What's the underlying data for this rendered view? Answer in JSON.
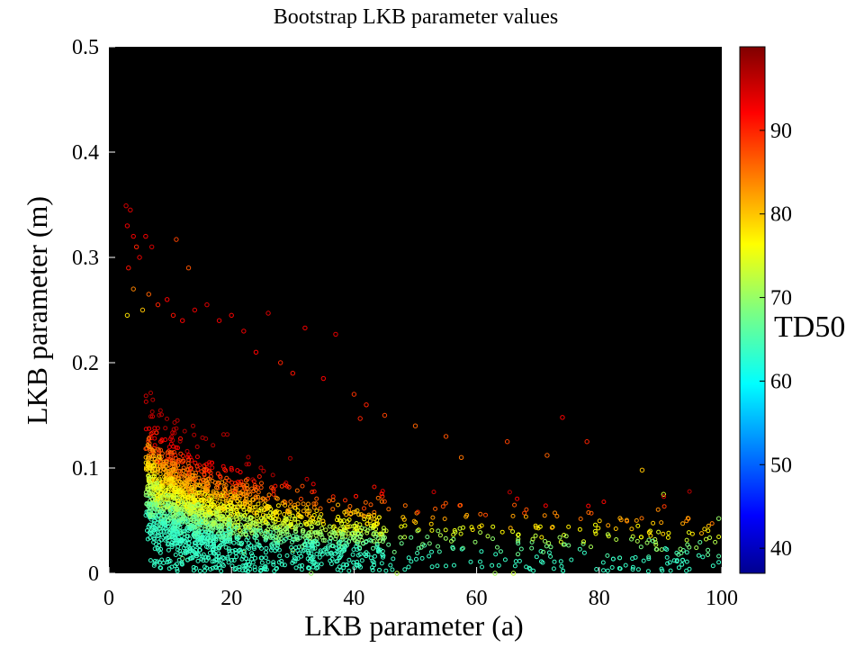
{
  "chart_data": {
    "type": "scatter",
    "title": "Bootstrap LKB parameter values",
    "xlabel": "LKB parameter (a)",
    "ylabel": "LKB parameter (m)",
    "xlim": [
      0,
      100
    ],
    "ylim": [
      0,
      0.5
    ],
    "xticks": [
      "0",
      "20",
      "40",
      "60",
      "80",
      "100"
    ],
    "yticks": [
      "0",
      "0.1",
      "0.2",
      "0.3",
      "0.4",
      "0.5"
    ],
    "plot_background": "#000000",
    "grid": false,
    "color_variable": "TD50",
    "colorbar": {
      "label": "TD50",
      "range": [
        37,
        100
      ],
      "ticks": [
        "40",
        "50",
        "60",
        "70",
        "80",
        "90"
      ],
      "colormap": "jet"
    },
    "points": [
      {
        "x": 2.8,
        "y": 0.349,
        "c": 95
      },
      {
        "x": 3.5,
        "y": 0.345,
        "c": 94
      },
      {
        "x": 3.0,
        "y": 0.33,
        "c": 93
      },
      {
        "x": 4.0,
        "y": 0.32,
        "c": 92
      },
      {
        "x": 4.5,
        "y": 0.31,
        "c": 90
      },
      {
        "x": 3.2,
        "y": 0.29,
        "c": 91
      },
      {
        "x": 5.0,
        "y": 0.3,
        "c": 93
      },
      {
        "x": 6.0,
        "y": 0.32,
        "c": 92
      },
      {
        "x": 7.0,
        "y": 0.31,
        "c": 95
      },
      {
        "x": 11.0,
        "y": 0.317,
        "c": 88
      },
      {
        "x": 13.0,
        "y": 0.29,
        "c": 87
      },
      {
        "x": 4.0,
        "y": 0.27,
        "c": 84
      },
      {
        "x": 5.5,
        "y": 0.25,
        "c": 80
      },
      {
        "x": 3.0,
        "y": 0.245,
        "c": 78
      },
      {
        "x": 6.5,
        "y": 0.265,
        "c": 86
      },
      {
        "x": 8.0,
        "y": 0.255,
        "c": 90
      },
      {
        "x": 9.5,
        "y": 0.26,
        "c": 92
      },
      {
        "x": 10.5,
        "y": 0.245,
        "c": 91
      },
      {
        "x": 12.0,
        "y": 0.24,
        "c": 92
      },
      {
        "x": 14.0,
        "y": 0.25,
        "c": 93
      },
      {
        "x": 16.0,
        "y": 0.255,
        "c": 94
      },
      {
        "x": 18.0,
        "y": 0.24,
        "c": 93
      },
      {
        "x": 20.0,
        "y": 0.245,
        "c": 92
      },
      {
        "x": 22.0,
        "y": 0.23,
        "c": 93
      },
      {
        "x": 26.0,
        "y": 0.247,
        "c": 94
      },
      {
        "x": 32.0,
        "y": 0.233,
        "c": 93
      },
      {
        "x": 37.0,
        "y": 0.227,
        "c": 94
      },
      {
        "x": 24.0,
        "y": 0.21,
        "c": 92
      },
      {
        "x": 28.0,
        "y": 0.2,
        "c": 90
      },
      {
        "x": 30.0,
        "y": 0.19,
        "c": 91
      },
      {
        "x": 35.0,
        "y": 0.185,
        "c": 92
      },
      {
        "x": 40.0,
        "y": 0.17,
        "c": 89
      },
      {
        "x": 42.0,
        "y": 0.16,
        "c": 90
      },
      {
        "x": 45.0,
        "y": 0.15,
        "c": 88
      },
      {
        "x": 41.0,
        "y": 0.147,
        "c": 90
      },
      {
        "x": 50.0,
        "y": 0.14,
        "c": 86
      },
      {
        "x": 55.0,
        "y": 0.13,
        "c": 87
      },
      {
        "x": 57.5,
        "y": 0.11,
        "c": 85
      },
      {
        "x": 65.0,
        "y": 0.125,
        "c": 88
      },
      {
        "x": 71.5,
        "y": 0.112,
        "c": 86
      },
      {
        "x": 74.0,
        "y": 0.148,
        "c": 92
      },
      {
        "x": 78.0,
        "y": 0.125,
        "c": 90
      },
      {
        "x": 87.0,
        "y": 0.098,
        "c": 80
      },
      {
        "x": 90.5,
        "y": 0.075,
        "c": 74
      },
      {
        "x": 99.5,
        "y": 0.052,
        "c": 70
      },
      {
        "x": 47.0,
        "y": 0.0,
        "c": 72
      },
      {
        "x": 63.0,
        "y": 0.0,
        "c": 71
      },
      {
        "x": 66.0,
        "y": 0.0,
        "c": 73
      },
      {
        "x": 33.0,
        "y": 0.0,
        "c": 70
      },
      {
        "x": 12.0,
        "y": 0.014,
        "c": 68
      },
      {
        "x": 22.0,
        "y": 0.02,
        "c": 70
      },
      {
        "x": 18.0,
        "y": 0.025,
        "c": 69
      },
      {
        "x": 30.0,
        "y": 0.022,
        "c": 71
      },
      {
        "x": 38.0,
        "y": 0.025,
        "c": 72
      }
    ],
    "cluster_density": {
      "note": "dense cloud: high m at low a (red), low m at high a (yellow/green)"
    }
  }
}
